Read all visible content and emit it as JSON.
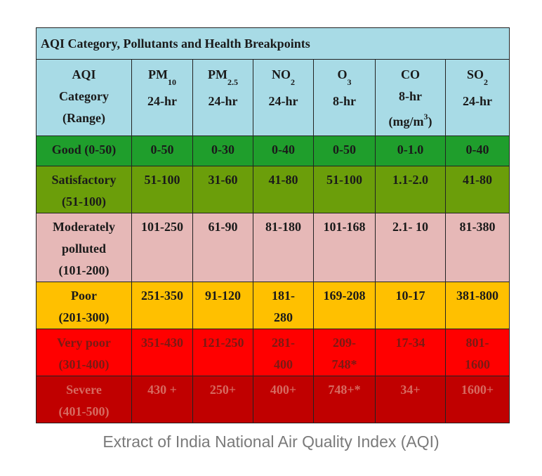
{
  "title": "AQI Category, Pollutants and Health Breakpoints",
  "headers": [
    {
      "lines": [
        "AQI",
        "Category",
        "(Range)"
      ]
    },
    {
      "main": "PM",
      "sub": "10",
      "line2": "24-hr"
    },
    {
      "main": "PM",
      "sub": "2.5",
      "line2": "24-hr"
    },
    {
      "main": "NO",
      "sub": "2",
      "line2": "24-hr"
    },
    {
      "main": "O",
      "sub": "3",
      "line2": "8-hr"
    },
    {
      "main": "CO",
      "line2": "8-hr",
      "line3_main": "(mg/m",
      "line3_sup": "3",
      "line3_end": ")"
    },
    {
      "main": "SO",
      "sub": "2",
      "line2": "24-hr"
    }
  ],
  "rows": [
    {
      "category": [
        "Good (0-50)"
      ],
      "values": [
        [
          "0-50"
        ],
        [
          "0-30"
        ],
        [
          "0-40"
        ],
        [
          "0-50"
        ],
        [
          "0-1.0"
        ],
        [
          "0-40"
        ]
      ],
      "color": "#1f9e2c"
    },
    {
      "category": [
        "Satisfactory",
        "(51-100)"
      ],
      "values": [
        [
          "51-100"
        ],
        [
          "31-60"
        ],
        [
          "41-80"
        ],
        [
          "51-100"
        ],
        [
          "1.1-2.0"
        ],
        [
          "41-80"
        ]
      ],
      "color": "#6b9e0a"
    },
    {
      "category": [
        "Moderately",
        "polluted",
        "(101-200)"
      ],
      "values": [
        [
          "101-250"
        ],
        [
          "61-90"
        ],
        [
          "81-180"
        ],
        [
          "101-168"
        ],
        [
          "2.1- 10"
        ],
        [
          "81-380"
        ]
      ],
      "color": "#e6b8b7"
    },
    {
      "category": [
        "Poor",
        "(201-300)"
      ],
      "values": [
        [
          "251-350"
        ],
        [
          "91-120"
        ],
        [
          "181-",
          "280"
        ],
        [
          "169-208"
        ],
        [
          "10-17"
        ],
        [
          "381-800"
        ]
      ],
      "color": "#ffc000"
    },
    {
      "category": [
        "Very poor",
        "(301-400)"
      ],
      "values": [
        [
          "351-430"
        ],
        [
          "121-250"
        ],
        [
          "281-",
          "400"
        ],
        [
          "209-",
          "748*"
        ],
        [
          "17-34"
        ],
        [
          "801-",
          "1600"
        ]
      ],
      "color": "#ff0000"
    },
    {
      "category": [
        "Severe",
        "(401-500)"
      ],
      "values": [
        [
          "430 +"
        ],
        [
          "250+"
        ],
        [
          "400+"
        ],
        [
          "748+*"
        ],
        [
          "34+"
        ],
        [
          "1600+"
        ]
      ],
      "color": "#c00000"
    }
  ],
  "caption": "Extract of India National Air Quality Index (AQI)"
}
